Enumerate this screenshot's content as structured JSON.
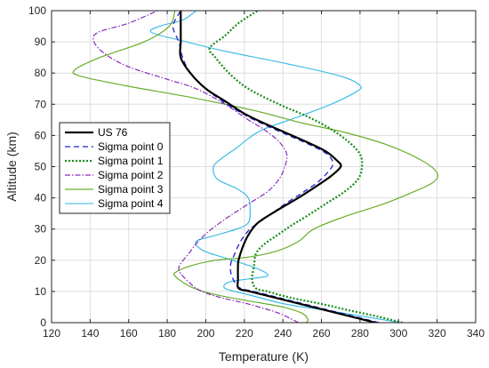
{
  "chart_data": {
    "type": "line",
    "title": "",
    "xlabel": "Temperature (K)",
    "ylabel": "Altitude (km)",
    "xlim": [
      120,
      340
    ],
    "ylim": [
      0,
      100
    ],
    "xticks": [
      120,
      140,
      160,
      180,
      200,
      220,
      240,
      260,
      280,
      300,
      320,
      340
    ],
    "yticks": [
      0,
      10,
      20,
      30,
      40,
      50,
      60,
      70,
      80,
      90,
      100
    ],
    "grid": true,
    "legend_position": "center-left",
    "series": [
      {
        "name": "US 76",
        "color": "#000000",
        "dash": "solid",
        "width": 2.2,
        "points": [
          [
            288,
            0
          ],
          [
            275,
            2
          ],
          [
            262,
            4
          ],
          [
            249,
            6
          ],
          [
            236,
            8
          ],
          [
            223,
            10
          ],
          [
            217,
            11
          ],
          [
            216.7,
            14
          ],
          [
            216.7,
            18
          ],
          [
            217,
            20
          ],
          [
            219,
            24
          ],
          [
            222,
            28
          ],
          [
            227,
            32
          ],
          [
            237,
            36
          ],
          [
            248,
            40
          ],
          [
            258,
            44
          ],
          [
            265,
            47
          ],
          [
            270,
            50
          ],
          [
            268,
            52
          ],
          [
            262,
            55
          ],
          [
            252,
            58
          ],
          [
            241,
            61
          ],
          [
            230,
            64
          ],
          [
            220,
            67
          ],
          [
            210,
            71
          ],
          [
            200,
            75
          ],
          [
            192,
            80
          ],
          [
            187,
            85
          ],
          [
            187,
            90
          ],
          [
            187,
            95
          ],
          [
            187,
            100
          ]
        ]
      },
      {
        "name": "Sigma point 0",
        "color": "#1f1fd6",
        "dash": "6,4",
        "width": 1.3,
        "points": [
          [
            290,
            0
          ],
          [
            277,
            2
          ],
          [
            264,
            4
          ],
          [
            251,
            6
          ],
          [
            238,
            8
          ],
          [
            225,
            10
          ],
          [
            218,
            11
          ],
          [
            215,
            13
          ],
          [
            213,
            16
          ],
          [
            213,
            19
          ],
          [
            215,
            22
          ],
          [
            218,
            26
          ],
          [
            223,
            30
          ],
          [
            232,
            34
          ],
          [
            241,
            38
          ],
          [
            251,
            42
          ],
          [
            258,
            45
          ],
          [
            263,
            48
          ],
          [
            266,
            51
          ],
          [
            263,
            54
          ],
          [
            254,
            57
          ],
          [
            243,
            60
          ],
          [
            232,
            63
          ],
          [
            222,
            66
          ],
          [
            211,
            70
          ],
          [
            200,
            75
          ],
          [
            192,
            80
          ],
          [
            188,
            85
          ],
          [
            186,
            90
          ],
          [
            183,
            95
          ],
          [
            187,
            100
          ]
        ]
      },
      {
        "name": "Sigma point 1",
        "color": "#1a8c1a",
        "dash": "2,2",
        "width": 2.2,
        "points": [
          [
            302,
            0
          ],
          [
            289,
            2
          ],
          [
            274,
            4
          ],
          [
            260,
            6
          ],
          [
            244,
            8
          ],
          [
            232,
            10
          ],
          [
            226,
            11
          ],
          [
            224,
            14
          ],
          [
            225,
            18
          ],
          [
            226,
            22
          ],
          [
            230,
            25
          ],
          [
            237,
            28
          ],
          [
            244,
            31
          ],
          [
            252,
            34
          ],
          [
            262,
            38
          ],
          [
            272,
            42
          ],
          [
            279,
            46
          ],
          [
            281,
            50
          ],
          [
            280,
            54
          ],
          [
            274,
            58
          ],
          [
            265,
            62
          ],
          [
            253,
            66
          ],
          [
            238,
            70
          ],
          [
            222,
            75
          ],
          [
            212,
            80
          ],
          [
            205,
            85
          ],
          [
            202,
            88
          ],
          [
            210,
            92
          ],
          [
            217,
            96
          ],
          [
            227,
            100
          ]
        ]
      },
      {
        "name": "Sigma point 2",
        "color": "#8a2bbf",
        "dash": "6,2,1.5,2",
        "width": 1.2,
        "points": [
          [
            248,
            0
          ],
          [
            238,
            3
          ],
          [
            222,
            6
          ],
          [
            208,
            8
          ],
          [
            198,
            10
          ],
          [
            193,
            12
          ],
          [
            188,
            15
          ],
          [
            186,
            17
          ],
          [
            187,
            19
          ],
          [
            191,
            22
          ],
          [
            196,
            26
          ],
          [
            203,
            30
          ],
          [
            212,
            34
          ],
          [
            222,
            38
          ],
          [
            232,
            42
          ],
          [
            238,
            46
          ],
          [
            241,
            50
          ],
          [
            242,
            54
          ],
          [
            238,
            58
          ],
          [
            230,
            62
          ],
          [
            222,
            65
          ],
          [
            210,
            70
          ],
          [
            195,
            75
          ],
          [
            180,
            78
          ],
          [
            160,
            82
          ],
          [
            148,
            86
          ],
          [
            142,
            90
          ],
          [
            144,
            93
          ],
          [
            160,
            96
          ],
          [
            175,
            100
          ]
        ]
      },
      {
        "name": "Sigma point 3",
        "color": "#6aad2a",
        "dash": "solid",
        "width": 1.2,
        "points": [
          [
            252,
            0
          ],
          [
            253,
            1
          ],
          [
            250,
            3
          ],
          [
            240,
            5
          ],
          [
            222,
            7
          ],
          [
            205,
            9
          ],
          [
            194,
            11
          ],
          [
            188,
            13
          ],
          [
            184,
            15
          ],
          [
            184,
            16
          ],
          [
            191,
            18
          ],
          [
            205,
            20
          ],
          [
            222,
            21
          ],
          [
            237,
            23
          ],
          [
            248,
            26
          ],
          [
            256,
            30
          ],
          [
            272,
            34
          ],
          [
            292,
            38
          ],
          [
            308,
            42
          ],
          [
            318,
            45
          ],
          [
            320,
            48
          ],
          [
            312,
            52
          ],
          [
            294,
            57
          ],
          [
            272,
            61
          ],
          [
            250,
            64
          ],
          [
            225,
            68
          ],
          [
            194,
            72
          ],
          [
            158,
            76
          ],
          [
            135,
            79
          ],
          [
            132,
            81
          ],
          [
            145,
            85
          ],
          [
            168,
            90
          ],
          [
            181,
            95
          ],
          [
            184,
            100
          ]
        ]
      },
      {
        "name": "Sigma point 4",
        "color": "#2fb7e6",
        "dash": "solid",
        "width": 1.1,
        "points": [
          [
            301,
            0
          ],
          [
            282,
            2
          ],
          [
            262,
            4
          ],
          [
            241,
            6
          ],
          [
            222,
            9
          ],
          [
            210,
            11
          ],
          [
            212,
            13
          ],
          [
            222,
            14
          ],
          [
            232,
            15
          ],
          [
            228,
            17
          ],
          [
            214,
            20
          ],
          [
            199,
            23
          ],
          [
            195,
            26
          ],
          [
            205,
            28
          ],
          [
            216,
            30
          ],
          [
            222,
            32
          ],
          [
            223,
            36
          ],
          [
            222,
            40
          ],
          [
            216,
            43
          ],
          [
            206,
            46
          ],
          [
            204,
            50
          ],
          [
            209,
            53
          ],
          [
            216,
            56
          ],
          [
            222,
            59
          ],
          [
            230,
            62
          ],
          [
            248,
            66
          ],
          [
            265,
            70
          ],
          [
            278,
            74
          ],
          [
            280,
            76
          ],
          [
            270,
            79
          ],
          [
            242,
            83
          ],
          [
            210,
            87
          ],
          [
            190,
            90
          ],
          [
            172,
            93
          ],
          [
            176,
            95
          ],
          [
            188,
            97
          ],
          [
            195,
            100
          ]
        ]
      }
    ]
  }
}
